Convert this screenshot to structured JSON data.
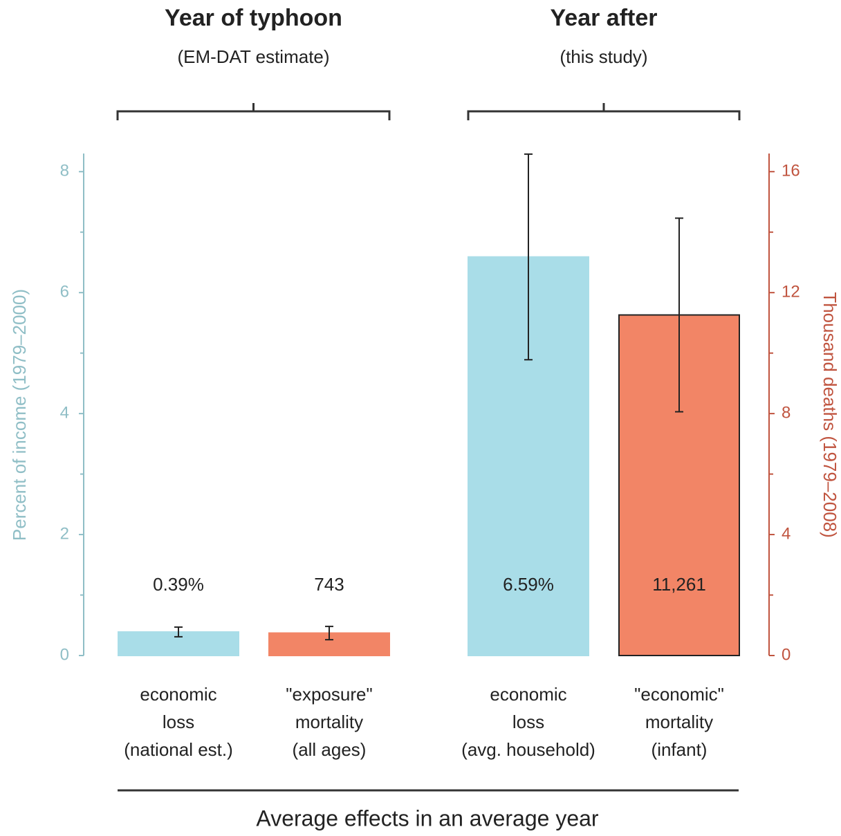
{
  "chart_data": {
    "type": "bar",
    "groups": [
      {
        "title": "Year of typhoon",
        "subtitle": "(EM-DAT estimate)"
      },
      {
        "title": "Year after",
        "subtitle": "(this study)"
      }
    ],
    "categories": [
      [
        "economic",
        "loss",
        "(national est.)"
      ],
      [
        "\"exposure\"",
        "mortality",
        "(all ages)"
      ],
      [
        "economic",
        "loss",
        "(avg. household)"
      ],
      [
        "\"economic\"",
        "mortality",
        "(infant)"
      ]
    ],
    "series": [
      {
        "color": "#a9dde8",
        "values": [
          0.39,
          null,
          6.59,
          null
        ],
        "errors": [
          0.08,
          null,
          1.7,
          null
        ],
        "value_labels": [
          "0.39%",
          null,
          "6.59%",
          null
        ]
      },
      {
        "color": "#f28566",
        "axis": "y2",
        "values": [
          null,
          0.743,
          null,
          11.261
        ],
        "errors": [
          null,
          0.22,
          null,
          3.2
        ],
        "value_labels": [
          null,
          "743",
          null,
          "11,261"
        ]
      }
    ],
    "ylabel": "Percent of income (1979–2000)",
    "y2label": "Thousand deaths (1979–2008)",
    "xlabel": "Average effects in an average year",
    "ylim": [
      0,
      8.3
    ],
    "yticks": [
      0,
      2,
      4,
      6,
      8
    ],
    "yminorticks": [
      1,
      3,
      5,
      7
    ],
    "y2lim": [
      0,
      16.6
    ],
    "y2ticks": [
      0,
      4,
      8,
      12,
      16
    ],
    "y2minorticks": [
      2,
      6,
      10,
      14
    ],
    "ycolor": "#8fbec6",
    "y2color": "#c0543f"
  }
}
